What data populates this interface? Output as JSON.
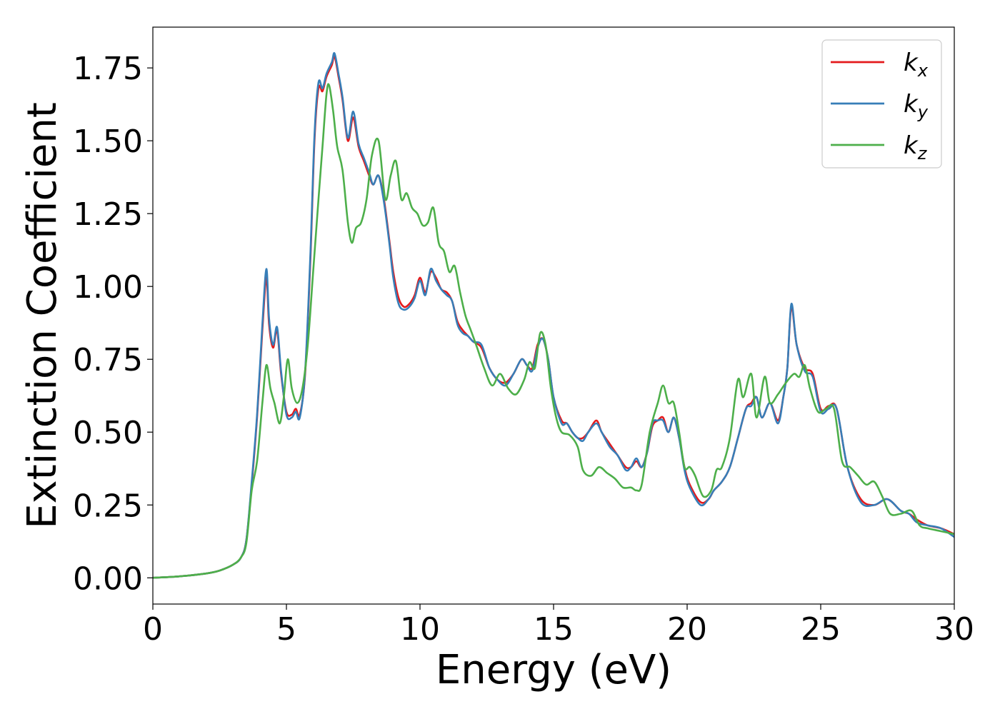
{
  "chart_data": {
    "type": "line",
    "title": "",
    "xlabel": "Energy (eV)",
    "ylabel": "Extinction Coefficient",
    "xlim": [
      0,
      30
    ],
    "ylim": [
      -0.09,
      1.89
    ],
    "xticks": [
      0,
      5,
      10,
      15,
      20,
      25,
      30
    ],
    "xtick_labels": [
      "0",
      "5",
      "10",
      "15",
      "20",
      "25",
      "30"
    ],
    "yticks": [
      0.0,
      0.25,
      0.5,
      0.75,
      1.0,
      1.25,
      1.5,
      1.75
    ],
    "ytick_labels": [
      "0.00",
      "0.25",
      "0.50",
      "0.75",
      "1.00",
      "1.25",
      "1.50",
      "1.75"
    ],
    "grid": false,
    "legend_position": "top-right",
    "series": [
      {
        "name": "k",
        "subscript": "x",
        "color": "#e41a1c",
        "x": [
          0,
          1,
          2,
          2.5,
          3.0,
          3.3,
          3.5,
          3.7,
          3.9,
          4.1,
          4.25,
          4.35,
          4.5,
          4.65,
          4.8,
          5.0,
          5.2,
          5.35,
          5.5,
          5.7,
          5.9,
          6.05,
          6.2,
          6.35,
          6.5,
          6.7,
          6.8,
          6.95,
          7.1,
          7.3,
          7.5,
          7.7,
          7.9,
          8.1,
          8.25,
          8.45,
          8.65,
          8.85,
          9.0,
          9.2,
          9.4,
          9.6,
          9.8,
          10.0,
          10.2,
          10.4,
          10.6,
          10.8,
          11.0,
          11.2,
          11.4,
          11.6,
          11.8,
          12.0,
          12.3,
          12.6,
          12.9,
          13.2,
          13.5,
          13.8,
          14.0,
          14.2,
          14.4,
          14.6,
          14.8,
          15.0,
          15.3,
          15.5,
          15.7,
          15.9,
          16.1,
          16.3,
          16.6,
          16.8,
          17.1,
          17.4,
          17.7,
          17.9,
          18.1,
          18.3,
          18.5,
          18.7,
          18.9,
          19.1,
          19.3,
          19.5,
          19.7,
          19.9,
          20.1,
          20.5,
          20.8,
          21.0,
          21.3,
          21.6,
          21.9,
          22.2,
          22.4,
          22.6,
          22.8,
          23.1,
          23.4,
          23.6,
          23.75,
          23.9,
          24.1,
          24.4,
          24.7,
          25.0,
          25.3,
          25.6,
          26.0,
          26.5,
          27.0,
          27.5,
          28.0,
          28.3,
          28.6,
          29.0,
          29.5,
          30.0
        ],
        "values": [
          0.0,
          0.005,
          0.015,
          0.025,
          0.045,
          0.07,
          0.13,
          0.32,
          0.55,
          0.85,
          1.03,
          0.87,
          0.79,
          0.85,
          0.7,
          0.57,
          0.56,
          0.58,
          0.56,
          0.7,
          1.1,
          1.5,
          1.68,
          1.67,
          1.72,
          1.76,
          1.79,
          1.72,
          1.64,
          1.5,
          1.58,
          1.48,
          1.43,
          1.38,
          1.35,
          1.38,
          1.3,
          1.16,
          1.05,
          0.96,
          0.93,
          0.94,
          0.97,
          1.03,
          0.98,
          1.05,
          1.03,
          0.99,
          0.98,
          0.95,
          0.88,
          0.85,
          0.83,
          0.81,
          0.79,
          0.72,
          0.68,
          0.67,
          0.7,
          0.75,
          0.73,
          0.72,
          0.8,
          0.82,
          0.75,
          0.62,
          0.54,
          0.53,
          0.5,
          0.48,
          0.48,
          0.5,
          0.54,
          0.5,
          0.46,
          0.42,
          0.38,
          0.38,
          0.4,
          0.38,
          0.43,
          0.52,
          0.54,
          0.55,
          0.5,
          0.55,
          0.48,
          0.38,
          0.32,
          0.26,
          0.27,
          0.3,
          0.33,
          0.38,
          0.48,
          0.58,
          0.6,
          0.62,
          0.55,
          0.6,
          0.54,
          0.62,
          0.72,
          0.93,
          0.8,
          0.72,
          0.7,
          0.58,
          0.59,
          0.58,
          0.38,
          0.27,
          0.25,
          0.27,
          0.23,
          0.22,
          0.2,
          0.18,
          0.17,
          0.15
        ]
      },
      {
        "name": "k",
        "subscript": "y",
        "color": "#377eb8",
        "x": [
          0,
          1,
          2,
          2.5,
          3.0,
          3.3,
          3.5,
          3.7,
          3.9,
          4.1,
          4.25,
          4.35,
          4.5,
          4.65,
          4.8,
          5.0,
          5.2,
          5.35,
          5.5,
          5.7,
          5.9,
          6.05,
          6.2,
          6.35,
          6.5,
          6.7,
          6.8,
          6.95,
          7.1,
          7.3,
          7.5,
          7.7,
          7.9,
          8.1,
          8.25,
          8.45,
          8.65,
          8.85,
          9.0,
          9.2,
          9.4,
          9.6,
          9.8,
          10.0,
          10.2,
          10.4,
          10.6,
          10.8,
          11.0,
          11.2,
          11.4,
          11.6,
          11.8,
          12.0,
          12.3,
          12.6,
          12.9,
          13.2,
          13.5,
          13.8,
          14.0,
          14.2,
          14.4,
          14.6,
          14.8,
          15.0,
          15.3,
          15.5,
          15.7,
          15.9,
          16.1,
          16.3,
          16.6,
          16.8,
          17.1,
          17.4,
          17.7,
          17.9,
          18.1,
          18.3,
          18.5,
          18.7,
          18.9,
          19.1,
          19.3,
          19.5,
          19.7,
          19.9,
          20.1,
          20.5,
          20.8,
          21.0,
          21.3,
          21.6,
          21.9,
          22.2,
          22.4,
          22.6,
          22.8,
          23.1,
          23.4,
          23.6,
          23.75,
          23.9,
          24.1,
          24.4,
          24.7,
          25.0,
          25.3,
          25.6,
          26.0,
          26.5,
          27.0,
          27.5,
          28.0,
          28.3,
          28.6,
          29.0,
          29.5,
          30.0
        ],
        "values": [
          0.0,
          0.005,
          0.015,
          0.025,
          0.045,
          0.07,
          0.13,
          0.33,
          0.56,
          0.87,
          1.06,
          0.89,
          0.8,
          0.86,
          0.71,
          0.56,
          0.55,
          0.57,
          0.55,
          0.71,
          1.12,
          1.52,
          1.7,
          1.68,
          1.73,
          1.77,
          1.8,
          1.73,
          1.65,
          1.51,
          1.6,
          1.49,
          1.44,
          1.39,
          1.35,
          1.38,
          1.29,
          1.15,
          1.03,
          0.94,
          0.92,
          0.93,
          0.96,
          1.02,
          0.97,
          1.06,
          1.02,
          0.99,
          0.97,
          0.95,
          0.87,
          0.84,
          0.83,
          0.81,
          0.8,
          0.72,
          0.68,
          0.66,
          0.7,
          0.75,
          0.73,
          0.71,
          0.79,
          0.82,
          0.75,
          0.62,
          0.53,
          0.53,
          0.5,
          0.48,
          0.47,
          0.5,
          0.53,
          0.5,
          0.45,
          0.42,
          0.37,
          0.38,
          0.41,
          0.38,
          0.43,
          0.53,
          0.54,
          0.54,
          0.5,
          0.55,
          0.48,
          0.37,
          0.31,
          0.25,
          0.27,
          0.3,
          0.33,
          0.38,
          0.48,
          0.58,
          0.59,
          0.62,
          0.55,
          0.6,
          0.53,
          0.62,
          0.72,
          0.94,
          0.8,
          0.71,
          0.69,
          0.57,
          0.58,
          0.58,
          0.38,
          0.26,
          0.25,
          0.27,
          0.23,
          0.22,
          0.19,
          0.18,
          0.17,
          0.14
        ]
      },
      {
        "name": "k",
        "subscript": "z",
        "color": "#4daf4a",
        "x": [
          0,
          1,
          2,
          2.5,
          3.0,
          3.3,
          3.5,
          3.7,
          3.9,
          4.1,
          4.25,
          4.4,
          4.55,
          4.75,
          4.9,
          5.05,
          5.2,
          5.4,
          5.6,
          5.8,
          6.0,
          6.2,
          6.35,
          6.5,
          6.6,
          6.75,
          6.9,
          7.1,
          7.3,
          7.45,
          7.6,
          7.8,
          8.0,
          8.2,
          8.45,
          8.7,
          8.9,
          9.1,
          9.3,
          9.5,
          9.7,
          9.9,
          10.1,
          10.3,
          10.5,
          10.7,
          10.9,
          11.1,
          11.3,
          11.5,
          11.7,
          11.9,
          12.1,
          12.4,
          12.7,
          13.0,
          13.3,
          13.6,
          13.9,
          14.1,
          14.3,
          14.5,
          14.7,
          14.9,
          15.1,
          15.3,
          15.6,
          15.9,
          16.1,
          16.4,
          16.7,
          17.0,
          17.3,
          17.6,
          17.9,
          18.1,
          18.3,
          18.6,
          18.9,
          19.1,
          19.3,
          19.5,
          19.7,
          19.9,
          20.1,
          20.3,
          20.6,
          20.9,
          21.1,
          21.3,
          21.6,
          21.9,
          22.1,
          22.4,
          22.6,
          22.9,
          23.1,
          23.4,
          23.7,
          24.0,
          24.2,
          24.4,
          24.6,
          24.9,
          25.2,
          25.5,
          25.8,
          26.1,
          26.4,
          26.7,
          27.0,
          27.3,
          27.6,
          28.0,
          28.4,
          28.7,
          29.0,
          29.5,
          30.0
        ],
        "values": [
          0.0,
          0.005,
          0.015,
          0.025,
          0.045,
          0.07,
          0.12,
          0.3,
          0.4,
          0.6,
          0.73,
          0.65,
          0.6,
          0.53,
          0.62,
          0.75,
          0.65,
          0.6,
          0.65,
          0.8,
          1.05,
          1.3,
          1.48,
          1.66,
          1.69,
          1.6,
          1.48,
          1.4,
          1.22,
          1.15,
          1.2,
          1.22,
          1.3,
          1.45,
          1.5,
          1.3,
          1.38,
          1.43,
          1.3,
          1.32,
          1.27,
          1.25,
          1.21,
          1.22,
          1.27,
          1.15,
          1.12,
          1.05,
          1.07,
          0.98,
          0.9,
          0.85,
          0.8,
          0.72,
          0.66,
          0.7,
          0.65,
          0.63,
          0.68,
          0.74,
          0.72,
          0.84,
          0.8,
          0.65,
          0.55,
          0.5,
          0.49,
          0.45,
          0.37,
          0.35,
          0.38,
          0.36,
          0.34,
          0.31,
          0.31,
          0.3,
          0.32,
          0.5,
          0.6,
          0.66,
          0.6,
          0.6,
          0.5,
          0.38,
          0.38,
          0.35,
          0.28,
          0.3,
          0.37,
          0.38,
          0.48,
          0.68,
          0.62,
          0.7,
          0.55,
          0.69,
          0.6,
          0.63,
          0.67,
          0.7,
          0.69,
          0.73,
          0.65,
          0.57,
          0.58,
          0.58,
          0.4,
          0.38,
          0.35,
          0.32,
          0.33,
          0.28,
          0.22,
          0.22,
          0.23,
          0.18,
          0.17,
          0.16,
          0.15
        ]
      }
    ]
  }
}
